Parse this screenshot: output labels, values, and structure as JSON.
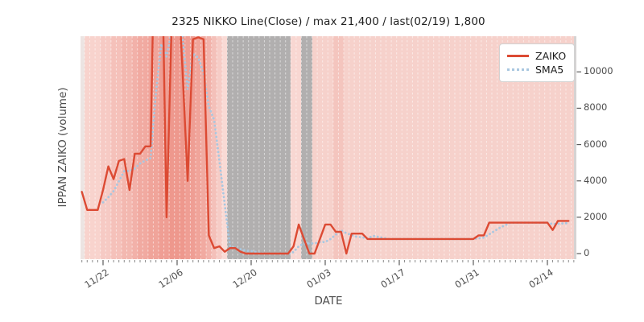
{
  "title": "2325 NIKKO Line(Close) / max 21,400 / last(02/19) 1,800",
  "axes": {
    "ylabel": "IPPAN ZAIKO (volume)",
    "xlabel": "DATE",
    "ytick_labels": [
      "0",
      "2000",
      "4000",
      "6000",
      "8000",
      "10000"
    ],
    "xtick_labels": [
      "11/22",
      "12/06",
      "12/20",
      "01/03",
      "01/17",
      "01/31",
      "02/14"
    ]
  },
  "legend": {
    "items": [
      {
        "label": "ZAIKO",
        "color": "#dc4a33",
        "style": "solid"
      },
      {
        "label": "SMA5",
        "color": "#a9c7e0",
        "style": "dotted"
      }
    ]
  },
  "colors": {
    "zaiko_line": "#dc4a33",
    "sma5_line": "#a9c7e0",
    "grid_dash": "rgba(255,255,255,0.55)",
    "tick_minor": "#8a8a8a",
    "tick_major": "#5a5a5a",
    "gray_band": "#b1afaf",
    "right_edge_band": "#d5d3d3"
  },
  "chart_data": {
    "type": "line",
    "title": "2325 NIKKO Line(Close) / max 21,400 / last(02/19) 1,800",
    "xlabel": "DATE",
    "ylabel": "IPPAN ZAIKO (volume)",
    "ylim": [
      -310,
      11980
    ],
    "yticks": [
      0,
      2000,
      4000,
      6000,
      8000,
      10000
    ],
    "xticks": [
      {
        "label": "11/22",
        "index": 4
      },
      {
        "label": "12/06",
        "index": 18
      },
      {
        "label": "12/20",
        "index": 32
      },
      {
        "label": "01/03",
        "index": 46
      },
      {
        "label": "01/17",
        "index": 60
      },
      {
        "label": "01/31",
        "index": 74
      },
      {
        "label": "02/14",
        "index": 88
      }
    ],
    "x": [
      "11/18",
      "11/19",
      "11/20",
      "11/21",
      "11/22",
      "11/23",
      "11/24",
      "11/25",
      "11/26",
      "11/27",
      "11/28",
      "11/29",
      "11/30",
      "12/01",
      "12/02",
      "12/03",
      "12/04",
      "12/05",
      "12/06",
      "12/07",
      "12/08",
      "12/09",
      "12/10",
      "12/11",
      "12/12",
      "12/13",
      "12/14",
      "12/15",
      "12/16",
      "12/17",
      "12/18",
      "12/19",
      "12/20",
      "12/21",
      "12/22",
      "12/23",
      "12/24",
      "12/25",
      "12/26",
      "12/27",
      "12/28",
      "12/29",
      "12/30",
      "12/31",
      "01/01",
      "01/02",
      "01/03",
      "01/04",
      "01/05",
      "01/06",
      "01/07",
      "01/08",
      "01/09",
      "01/10",
      "01/11",
      "01/12",
      "01/13",
      "01/14",
      "01/15",
      "01/16",
      "01/17",
      "01/18",
      "01/19",
      "01/20",
      "01/21",
      "01/22",
      "01/23",
      "01/24",
      "01/25",
      "01/26",
      "01/27",
      "01/28",
      "01/29",
      "01/30",
      "01/31",
      "02/01",
      "02/02",
      "02/03",
      "02/04",
      "02/05",
      "02/06",
      "02/07",
      "02/08",
      "02/09",
      "02/10",
      "02/11",
      "02/12",
      "02/13",
      "02/14",
      "02/15",
      "02/16",
      "02/17",
      "02/18",
      "02/19"
    ],
    "series": [
      {
        "name": "ZAIKO",
        "values": [
          3400,
          2400,
          2400,
          2400,
          3500,
          4800,
          4100,
          5100,
          5200,
          3500,
          5500,
          5500,
          5900,
          5900,
          21400,
          19000,
          2000,
          13000,
          16000,
          10200,
          4000,
          11800,
          11900,
          11800,
          1000,
          300,
          400,
          100,
          300,
          300,
          100,
          0,
          0,
          0,
          0,
          0,
          0,
          0,
          0,
          0,
          400,
          1600,
          800,
          0,
          0,
          800,
          1600,
          1600,
          1200,
          1200,
          0,
          1100,
          1100,
          1100,
          800,
          800,
          800,
          800,
          800,
          800,
          800,
          800,
          800,
          800,
          800,
          800,
          800,
          800,
          800,
          800,
          800,
          800,
          800,
          800,
          800,
          1000,
          1000,
          1700,
          1700,
          1700,
          1700,
          1700,
          1700,
          1700,
          1700,
          1700,
          1700,
          1700,
          1700,
          1300,
          1800,
          1800,
          1800
        ]
      },
      {
        "name": "SMA5",
        "values": [
          null,
          null,
          null,
          null,
          2820,
          3100,
          3440,
          3980,
          4540,
          4540,
          4680,
          4960,
          5120,
          5260,
          8840,
          11540,
          10840,
          12260,
          14280,
          12040,
          9040,
          11000,
          10780,
          9940,
          8100,
          7360,
          5080,
          2720,
          420,
          280,
          240,
          160,
          140,
          80,
          20,
          0,
          0,
          0,
          0,
          0,
          80,
          400,
          560,
          560,
          560,
          640,
          640,
          800,
          1040,
          1280,
          1120,
          1020,
          920,
          900,
          820,
          980,
          920,
          860,
          800,
          800,
          800,
          800,
          800,
          800,
          800,
          800,
          800,
          800,
          800,
          800,
          800,
          800,
          800,
          800,
          800,
          840,
          880,
          1060,
          1240,
          1420,
          1560,
          1700,
          1700,
          1700,
          1700,
          1700,
          1700,
          1700,
          1700,
          1620,
          1640,
          1660,
          1680
        ]
      }
    ],
    "day_colors": [
      "#ece4e2",
      "#f8d3cd",
      "#f8d3cd",
      "#f8d3cd",
      "#f6cac4",
      "#f6cac4",
      "#f5c1ba",
      "#f5c1ba",
      "#f3b8b0",
      "#f3b8b0",
      "#f2b1a9",
      "#f1aaa1",
      "#f1aaa1",
      "#f0a49a",
      "#f0a49a",
      "#ef9e94",
      "#ef9e94",
      "#ee988d",
      "#ee988d",
      "#ee988d",
      "#ef9e94",
      "#ef9e94",
      "#f0a49a",
      "#f1aaa1",
      "#f2b3ab",
      "#f4c0b9",
      "#f6ccc6",
      "#f9dad5",
      "#b1afaf",
      "#b1afaf",
      "#b1afaf",
      "#b1afaf",
      "#b1afaf",
      "#b1afaf",
      "#b1afaf",
      "#b1afaf",
      "#b1afaf",
      "#b1afaf",
      "#b1afaf",
      "#b1afaf",
      "#f8d7d2",
      "#f8d7d2",
      "#b1afaf",
      "#b1afaf",
      "#f6d1cb",
      "#f6d1cb",
      "#f6d1cb",
      "#f6d1cb",
      "#f4c5be",
      "#f4c5be",
      "#f6d1cb",
      "#f6d1cb",
      "#f6d1cb",
      "#f6d1cb",
      "#f6d1cb",
      "#f6d1cb",
      "#f6d1cb",
      "#f6d1cb",
      "#f6d1cb",
      "#f6d1cb",
      "#f6d1cb",
      "#f6d1cb",
      "#f6d1cb",
      "#f6d1cb",
      "#f6d1cb",
      "#f6d1cb",
      "#f6d1cb",
      "#f6d1cb",
      "#f6d1cb",
      "#f6d1cb",
      "#f6d1cb",
      "#f6d1cb",
      "#f6d1cb",
      "#f6d1cb",
      "#f6d1cb",
      "#f6d1cb",
      "#f6d1cb",
      "#f6d1cb",
      "#f6d1cb",
      "#f6d1cb",
      "#f6d1cb",
      "#f6d1cb",
      "#f6d1cb",
      "#f6d1cb",
      "#f6d1cb",
      "#f6d1cb",
      "#f6d1cb",
      "#f6d1cb",
      "#f6d1cb",
      "#f6d1cb",
      "#f6d1cb",
      "#f6d1cb",
      "#f6d1cb",
      "#f6d1cb"
    ]
  }
}
